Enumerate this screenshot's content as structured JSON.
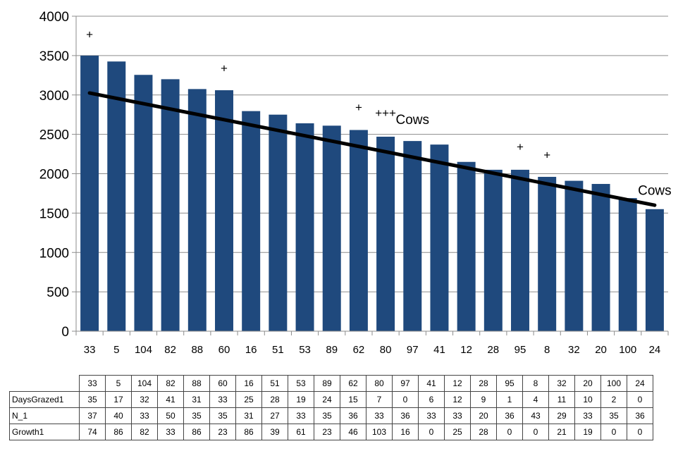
{
  "chart_data": {
    "type": "bar",
    "categories": [
      "33",
      "5",
      "104",
      "82",
      "88",
      "60",
      "16",
      "51",
      "53",
      "89",
      "62",
      "80",
      "97",
      "41",
      "12",
      "28",
      "95",
      "8",
      "32",
      "20",
      "100",
      "24"
    ],
    "values": [
      3500,
      3425,
      3255,
      3200,
      3075,
      3060,
      2795,
      2750,
      2640,
      2610,
      2555,
      2470,
      2415,
      2370,
      2150,
      2050,
      2050,
      1960,
      1910,
      1870,
      1690,
      1550
    ],
    "bar_color": "#1f497d",
    "trendline": {
      "type": "linear",
      "start": 3025,
      "end": 1600,
      "color": "#000000"
    },
    "ylim": [
      0,
      4000
    ],
    "yticks": [
      "0",
      "500",
      "1000",
      "1500",
      "2000",
      "2500",
      "3000",
      "3500",
      "4000"
    ],
    "grid": true,
    "legend": "none",
    "annotations": [
      {
        "category_index": 0,
        "text": "+",
        "y": 3720
      },
      {
        "category_index": 5,
        "text": "+",
        "y": 3290
      },
      {
        "category_index": 10,
        "text": "+",
        "y": 2790
      },
      {
        "category_index": 11,
        "text": "+++",
        "y": 2720
      },
      {
        "category_index": 12,
        "text": "Cows",
        "y": 2630
      },
      {
        "category_index": 16,
        "text": "+",
        "y": 2290
      },
      {
        "category_index": 17,
        "text": "+",
        "y": 2190
      },
      {
        "category_index": 21,
        "text": "Cows",
        "y": 1730
      }
    ]
  },
  "table": {
    "header": [
      "33",
      "5",
      "104",
      "82",
      "88",
      "60",
      "16",
      "51",
      "53",
      "89",
      "62",
      "80",
      "97",
      "41",
      "12",
      "28",
      "95",
      "8",
      "32",
      "20",
      "100",
      "24"
    ],
    "rows": [
      {
        "label": "DaysGrazed1",
        "values": [
          "35",
          "17",
          "32",
          "41",
          "31",
          "33",
          "25",
          "28",
          "19",
          "24",
          "15",
          "7",
          "0",
          "6",
          "12",
          "9",
          "1",
          "4",
          "11",
          "10",
          "2",
          "0"
        ]
      },
      {
        "label": "N_1",
        "values": [
          "37",
          "40",
          "33",
          "50",
          "35",
          "35",
          "31",
          "27",
          "33",
          "35",
          "36",
          "33",
          "36",
          "33",
          "33",
          "20",
          "36",
          "43",
          "29",
          "33",
          "35",
          "36"
        ]
      },
      {
        "label": "Growth1",
        "values": [
          "74",
          "86",
          "82",
          "33",
          "86",
          "23",
          "86",
          "39",
          "61",
          "23",
          "46",
          "103",
          "16",
          "0",
          "25",
          "28",
          "0",
          "0",
          "21",
          "19",
          "0",
          "0"
        ]
      }
    ]
  }
}
